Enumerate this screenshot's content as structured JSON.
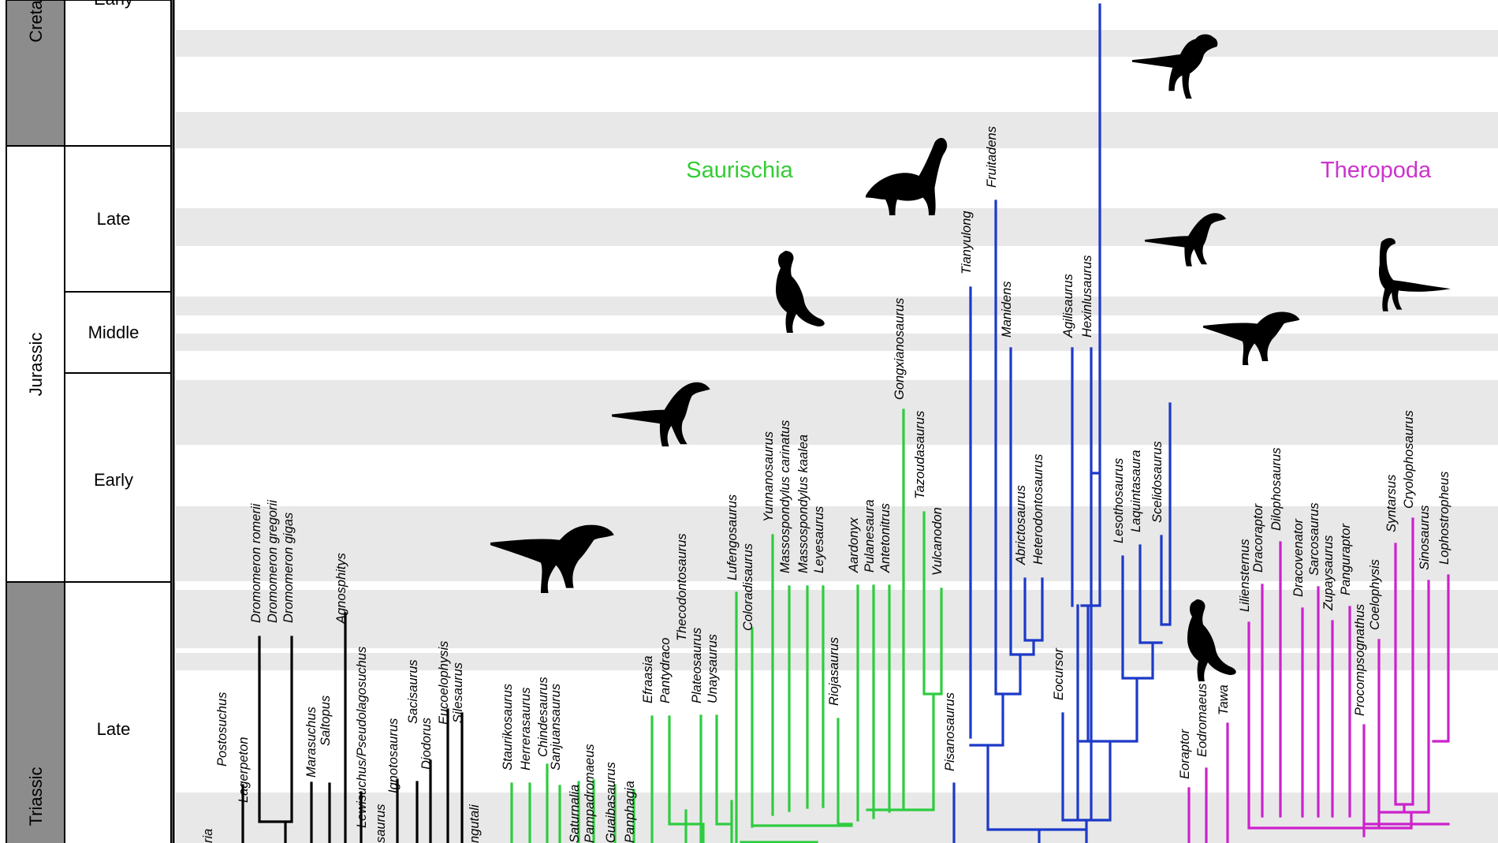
{
  "periods": [
    {
      "name": "Creta",
      "fill": "#8c8c8c"
    },
    {
      "name": "Jurassic",
      "fill": "#ffffff"
    },
    {
      "name": "Triassic",
      "fill": "#8c8c8c"
    }
  ],
  "epochs": [
    "Early",
    "Late",
    "Middle",
    "Early",
    "Late"
  ],
  "clades": [
    {
      "name": "Saurischia",
      "color": "#33cc33"
    },
    {
      "name": "Theropoda",
      "color": "#cc33cc"
    }
  ],
  "colors": {
    "outgroup": "#000000",
    "sauropodomorpha": "#2ecc40",
    "ornithischia": "#1c39c8",
    "theropoda": "#cc22cc",
    "band": "#e8e8e8"
  },
  "taxa": {
    "outgroup": [
      "ria",
      "Postosuchus",
      "Lagerpeton",
      "Dromomeron romerii",
      "Dromomeron gregorii",
      "Dromomeron gigas",
      "Marasuchus",
      "Saltopus",
      "Agnosphitys",
      "Lewisuchus/Pseudolagosuchus",
      "saurus",
      "Ignotosaurus",
      "Sacisaurus",
      "Diodorus",
      "Eucoelophysis",
      "Silesaurus",
      "ngutali"
    ],
    "sauropodomorpha": [
      "Staurikosaurus",
      "Herrerasaurus",
      "Chindesaurus",
      "Sanjuansaurus",
      "Saturnalia",
      "Pampadromaeus",
      "Guaibasaurus",
      "Panphagia",
      "Efraasia",
      "Pantydraco",
      "Thecodontosaurus",
      "Plateosaurus",
      "Unaysaurus",
      "Lufengosaurus",
      "Coloradisaurus",
      "Yunnanosaurus",
      "Massospondylus carinatus",
      "Massospondylus kaalea",
      "Leyesaurus",
      "Riojasaurus",
      "Aardonyx",
      "Pulanesaura",
      "Antetonitrus",
      "Gongxianosaurus",
      "Tazoudasaurus",
      "Vulcanodon"
    ],
    "ornithischia": [
      "Pisanosaurus",
      "Tianyulong",
      "Fruitadens",
      "Manidens",
      "Abrictosaurus",
      "Heterodontosaurus",
      "Eocursor",
      "Agilisaurus",
      "Hexinlusaurus",
      "Lesothosaurus",
      "Laquintasaura",
      "Scelidosaurus"
    ],
    "theropoda": [
      "Eoraptor",
      "Eodromaeus",
      "Tawa",
      "Liliensternus",
      "Dracoraptor",
      "Dilophosaurus",
      "Dracovenator",
      "Sarcosaurus",
      "Zupaysaurus",
      "Panguraptor",
      "Procompsognathus",
      "Coelophysis",
      "Syntarsus",
      "Cryolophosaurus",
      "Sinosaurus",
      "Lophostropheus"
    ]
  },
  "silhouettes": [
    "tyrannosaur-silhouette",
    "prosauropod-silhouette",
    "rearing-sauropodomorph-silhouette",
    "sauropod-silhouette",
    "ornithischian-silhouette",
    "small-ornithischian-silhouette",
    "coelophysoid-silhouette",
    "dilophosaur-silhouette",
    "long-necked-theropod-silhouette",
    "heterodontosaur-silhouette"
  ]
}
